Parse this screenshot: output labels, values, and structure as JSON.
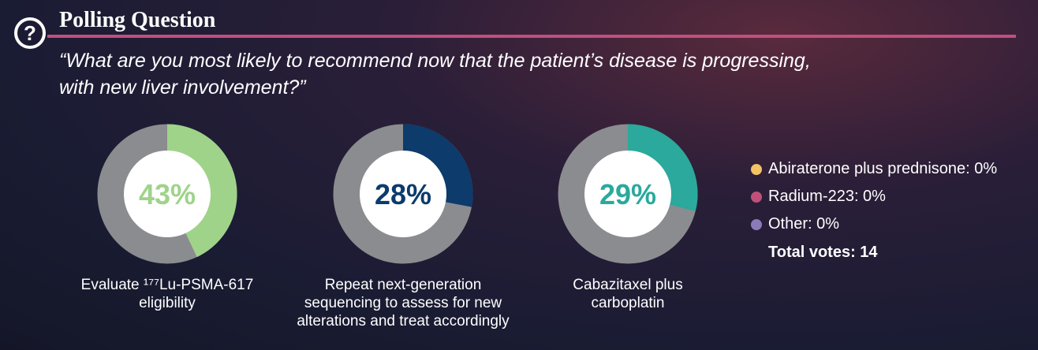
{
  "header": {
    "title": "Polling Question",
    "question_lines": [
      "“What are you most likely to recommend now that the patient’s disease is progressing,",
      "with new liver involvement?”"
    ]
  },
  "chart_data": [
    {
      "type": "pie",
      "categories": [
        "Evaluate ¹⁷⁷Lu-PSMA-617 eligibility"
      ],
      "values": [
        43
      ],
      "value_labels": [
        "43%"
      ],
      "color": "#9fd38a"
    },
    {
      "type": "pie",
      "categories": [
        "Repeat next-generation sequencing to assess for new alterations and treat accordingly"
      ],
      "values": [
        28
      ],
      "value_labels": [
        "28%"
      ],
      "color": "#0c3b6c"
    },
    {
      "type": "pie",
      "categories": [
        "Cabazitaxel plus carboplatin"
      ],
      "values": [
        29
      ],
      "value_labels": [
        "29%"
      ],
      "color": "#2aa99c"
    }
  ],
  "legend": {
    "items": [
      {
        "label": "Abiraterone plus prednisone: 0%",
        "color": "#f2c265"
      },
      {
        "label": "Radium-223: 0%",
        "color": "#c0507a"
      },
      {
        "label": "Other: 0%",
        "color": "#8c7bb8"
      }
    ],
    "total": "Total votes: 14"
  }
}
